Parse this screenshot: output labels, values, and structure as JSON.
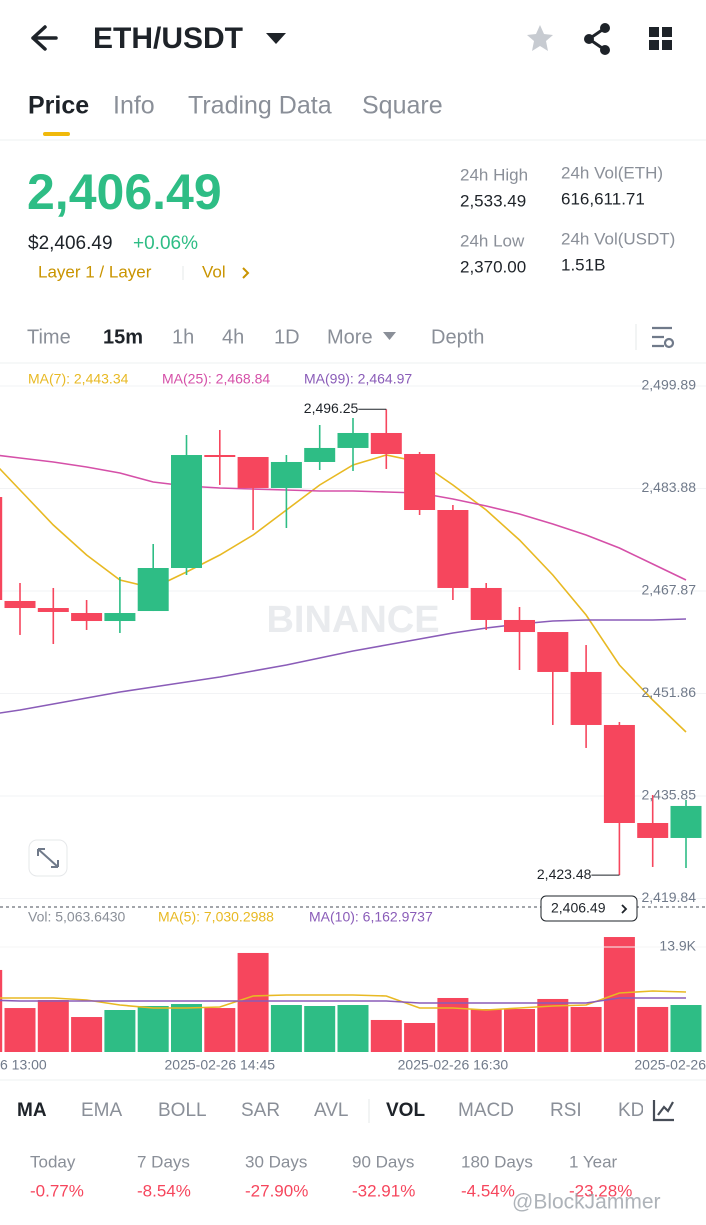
{
  "header": {
    "title": "ETH/USDT"
  },
  "tabs": [
    "Price",
    "Info",
    "Trading Data",
    "Square"
  ],
  "price": {
    "last": "2,406.49",
    "usd": "$2,406.49",
    "change": "+0.06%",
    "tag": "Layer 1 / Layer",
    "vol_link": "Vol"
  },
  "stats": {
    "high_label": "24h High",
    "high": "2,533.49",
    "low_label": "24h Low",
    "low": "2,370.00",
    "vol_eth_label": "24h Vol(ETH)",
    "vol_eth": "616,611.71",
    "vol_usdt_label": "24h Vol(USDT)",
    "vol_usdt": "1.51B"
  },
  "intervals": [
    "Time",
    "15m",
    "1h",
    "4h",
    "1D",
    "More",
    "Depth"
  ],
  "chart_data": {
    "type": "candlestick",
    "watermark": "BINANCE",
    "categories": [
      null,
      null,
      null,
      null,
      null,
      null,
      null,
      "2025-02-26 14:45",
      null,
      null,
      null,
      null,
      null,
      null,
      "2025-02-26 16:30",
      null,
      null,
      null,
      null,
      null,
      null,
      null
    ],
    "edge_labels": [
      "6 13:00",
      "2025-02-26"
    ],
    "candles": {
      "open": [
        2482.55,
        2466.31,
        2465.21,
        2464.43,
        2463.18,
        2464.74,
        2471.46,
        2489.11,
        2488.8,
        2483.96,
        2488.02,
        2490.21,
        2492.55,
        2489.27,
        2480.52,
        2468.34,
        2463.34,
        2461.46,
        2455.22,
        2446.94,
        2431.63,
        2429.29
      ],
      "high": [
        2483.65,
        2469.12,
        2468.34,
        2466.46,
        2470.06,
        2475.21,
        2492.24,
        2493.02,
        2488.8,
        2489.11,
        2493.8,
        2494.89,
        2496.25,
        2489.58,
        2481.3,
        2469.12,
        2465.37,
        2461.46,
        2459.43,
        2447.41,
        2436.0,
        2435.22
      ],
      "low": [
        2465.68,
        2461.0,
        2459.59,
        2461.78,
        2461.31,
        2464.74,
        2470.37,
        2484.43,
        2477.4,
        2477.71,
        2486.77,
        2486.61,
        2486.93,
        2479.74,
        2466.46,
        2461.78,
        2455.53,
        2446.94,
        2443.35,
        2423.48,
        2424.76,
        2424.6
      ],
      "close": [
        2466.46,
        2465.21,
        2464.59,
        2463.18,
        2464.43,
        2471.46,
        2489.11,
        2488.8,
        2483.96,
        2488.02,
        2490.21,
        2492.55,
        2489.27,
        2480.52,
        2468.34,
        2463.34,
        2461.46,
        2455.22,
        2446.94,
        2431.63,
        2429.29,
        2434.29
      ]
    },
    "up_color": "#2ebd85",
    "down_color": "#f6465d",
    "high_label": "2,496.25",
    "low_label": "2,423.48",
    "last_price_label": "2,406.49",
    "ma_lines": [
      {
        "legend": "MA(7): 2,443.34",
        "color": "#e8b923",
        "values": [
          2489.11,
          2483.65,
          2478.18,
          2473.49,
          2469.59,
          2468.34,
          2470.84,
          2473.49,
          2476.62,
          2480.52,
          2484.43,
          2487.55,
          2489.11,
          2488.02,
          2484.43,
          2480.52,
          2475.84,
          2470.37,
          2464.12,
          2456.31,
          2450.84,
          2445.85
        ]
      },
      {
        "legend": "MA(25): 2,468.84",
        "color": "#d550a8",
        "values": [
          2489.27,
          2488.64,
          2488.02,
          2487.24,
          2486.3,
          2484.89,
          2484.27,
          2483.96,
          2483.8,
          2483.65,
          2483.49,
          2483.49,
          2483.33,
          2483.18,
          2482.24,
          2481.15,
          2479.9,
          2478.34,
          2476.62,
          2474.59,
          2472.09,
          2469.59
        ]
      },
      {
        "legend": "MA(99): 2,464.97",
        "color": "#8a5cb8",
        "values": [
          2448.5,
          2449.28,
          2450.22,
          2451.16,
          2452.09,
          2452.87,
          2453.65,
          2454.44,
          2455.37,
          2456.31,
          2457.4,
          2458.5,
          2459.43,
          2460.37,
          2461.31,
          2462.09,
          2462.71,
          2463.18,
          2463.34,
          2463.34,
          2463.34,
          2463.5
        ]
      }
    ],
    "ylim": [
      2418.82,
      2503.17
    ],
    "yticks": [
      {
        "value": 2499.89,
        "label": "2,499.89"
      },
      {
        "value": 2483.88,
        "label": "2,483.88"
      },
      {
        "value": 2467.87,
        "label": "2,467.87"
      },
      {
        "value": 2451.86,
        "label": "2,451.86"
      },
      {
        "value": 2435.85,
        "label": "2,435.85"
      },
      {
        "value": 2419.84,
        "label": "2,419.84"
      }
    ],
    "grid": true,
    "volume": {
      "legend": [
        "Vol: 5,063.6430",
        "MA(5): 7,030.2988",
        "MA(10): 6,162.9737"
      ],
      "legend_colors": [
        "#8a8f98",
        "#e8b923",
        "#8a5cb8"
      ],
      "values": [
        10860,
        5820,
        6880,
        4630,
        5560,
        6090,
        6350,
        5820,
        13110,
        6220,
        6090,
        6220,
        4240,
        3840,
        7150,
        5690,
        5690,
        7020,
        5960,
        15220,
        5960,
        6220
      ],
      "ma_lines": [
        {
          "color": "#e8b923",
          "values": [
            7149,
            7149,
            7149,
            6884,
            6222,
            5825,
            5825,
            5957,
            7413,
            7546,
            7546,
            7546,
            7413,
            5825,
            5825,
            5560,
            5825,
            6089,
            6222,
            7810,
            8075,
            7943
          ]
        },
        {
          "color": "#8a5cb8",
          "values": [
            6884,
            6751,
            6751,
            6751,
            6751,
            6751,
            6751,
            6751,
            6751,
            6751,
            6751,
            6751,
            6751,
            6487,
            6487,
            6487,
            6487,
            6487,
            6487,
            7149,
            7149,
            7149
          ]
        }
      ],
      "ylim": [
        0,
        16150
      ],
      "yticks": [
        {
          "value": 13900,
          "label": "13.9K"
        }
      ]
    }
  },
  "indicators": [
    "MA",
    "EMA",
    "BOLL",
    "SAR",
    "AVL",
    "VOL",
    "MACD",
    "RSI",
    "KD"
  ],
  "performance": {
    "labels": [
      "Today",
      "7 Days",
      "30 Days",
      "90 Days",
      "180 Days",
      "1 Year"
    ],
    "values": [
      "-0.77%",
      "-8.54%",
      "-27.90%",
      "-32.91%",
      "-4.54%",
      "-23.28%"
    ]
  },
  "watermark": "@BlockJammer"
}
